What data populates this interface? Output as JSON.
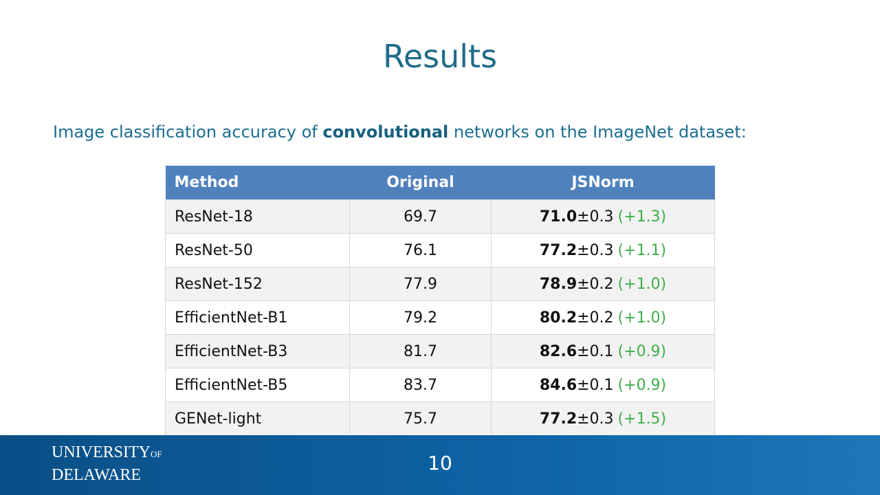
{
  "title": "Results",
  "subtitle": {
    "before": "Image classification accuracy of ",
    "bold": "convolutional",
    "after": " networks on the ImageNet dataset:"
  },
  "table": {
    "header": [
      "Method",
      "Original",
      "JSNorm"
    ],
    "rows": [
      {
        "method": "ResNet-18",
        "original": "69.7",
        "mean": "71.0",
        "std": "±0.3",
        "gain": "(+1.3)"
      },
      {
        "method": "ResNet-50",
        "original": "76.1",
        "mean": "77.2",
        "std": "±0.3",
        "gain": "(+1.1)"
      },
      {
        "method": "ResNet-152",
        "original": "77.9",
        "mean": "78.9",
        "std": "±0.2",
        "gain": "(+1.0)"
      },
      {
        "method": "EfficientNet-B1",
        "original": "79.2",
        "mean": "80.2",
        "std": "±0.2",
        "gain": "(+1.0)"
      },
      {
        "method": "EfficientNet-B3",
        "original": "81.7",
        "mean": "82.6",
        "std": "±0.1",
        "gain": "(+0.9)"
      },
      {
        "method": "EfficientNet-B5",
        "original": "83.7",
        "mean": "84.6",
        "std": "±0.1",
        "gain": "(+0.9)"
      },
      {
        "method": "GENet-light",
        "original": "75.7",
        "mean": "77.2",
        "std": "±0.3",
        "gain": "(+1.5)"
      }
    ]
  },
  "footer": {
    "page": "10",
    "logo": {
      "university": "UNIVERSITY",
      "of": "OF",
      "delaware": "DELAWARE"
    }
  }
}
